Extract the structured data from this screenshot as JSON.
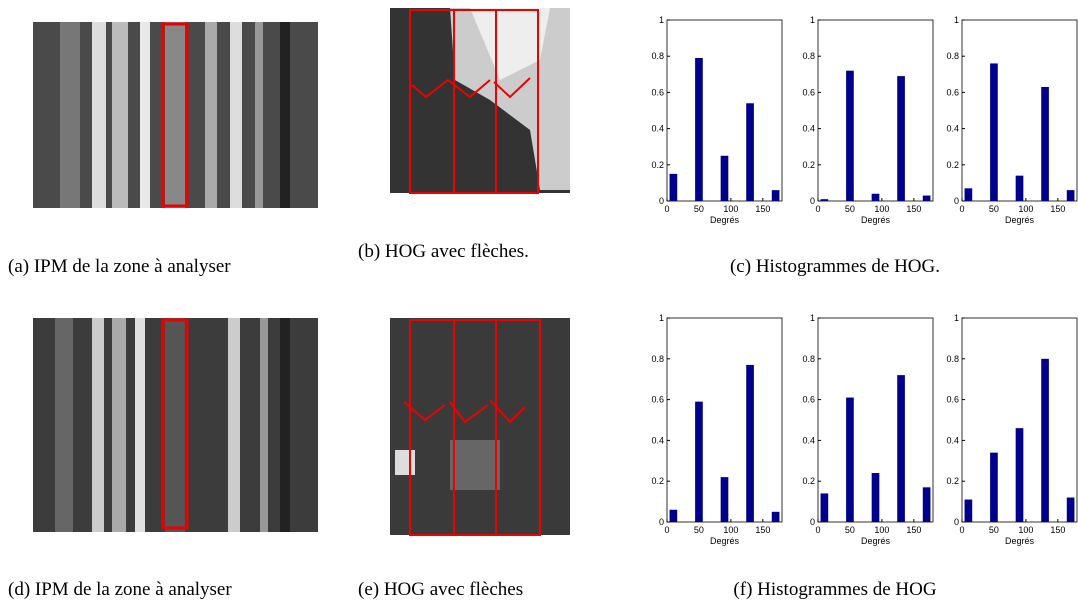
{
  "chart_data": [
    {
      "type": "bar",
      "x": [
        10,
        50,
        90,
        130,
        170
      ],
      "values": [
        0.15,
        0.79,
        0.25,
        0.54,
        0.06
      ],
      "color": "#00008b",
      "xlabel": "Degrés",
      "xlim": [
        0,
        180
      ],
      "xticks": [
        0,
        50,
        100,
        150
      ],
      "ylim": [
        0,
        1
      ],
      "yticks": [
        0,
        0.2,
        0.4,
        0.6,
        0.8,
        1
      ]
    },
    {
      "type": "bar",
      "x": [
        10,
        50,
        90,
        130,
        170
      ],
      "values": [
        0.01,
        0.72,
        0.04,
        0.69,
        0.03
      ],
      "color": "#00008b",
      "xlabel": "Degrés",
      "xlim": [
        0,
        180
      ],
      "xticks": [
        0,
        50,
        100,
        150
      ],
      "ylim": [
        0,
        1
      ],
      "yticks": [
        0,
        0.2,
        0.4,
        0.6,
        0.8,
        1
      ]
    },
    {
      "type": "bar",
      "x": [
        10,
        50,
        90,
        130,
        170
      ],
      "values": [
        0.07,
        0.76,
        0.14,
        0.63,
        0.06
      ],
      "color": "#00008b",
      "xlabel": "Degrés",
      "xlim": [
        0,
        180
      ],
      "xticks": [
        0,
        50,
        100,
        150
      ],
      "ylim": [
        0,
        1
      ],
      "yticks": [
        0,
        0.2,
        0.4,
        0.6,
        0.8,
        1
      ]
    },
    {
      "type": "bar",
      "x": [
        10,
        50,
        90,
        130,
        170
      ],
      "values": [
        0.06,
        0.59,
        0.22,
        0.77,
        0.05
      ],
      "color": "#00008b",
      "xlabel": "Degrés",
      "xlim": [
        0,
        180
      ],
      "xticks": [
        0,
        50,
        100,
        150
      ],
      "ylim": [
        0,
        1
      ],
      "yticks": [
        0,
        0.2,
        0.4,
        0.6,
        0.8,
        1
      ]
    },
    {
      "type": "bar",
      "x": [
        10,
        50,
        90,
        130,
        170
      ],
      "values": [
        0.14,
        0.61,
        0.24,
        0.72,
        0.17
      ],
      "color": "#00008b",
      "xlabel": "Degrés",
      "xlim": [
        0,
        180
      ],
      "xticks": [
        0,
        50,
        100,
        150
      ],
      "ylim": [
        0,
        1
      ],
      "yticks": [
        0,
        0.2,
        0.4,
        0.6,
        0.8,
        1
      ]
    },
    {
      "type": "bar",
      "x": [
        10,
        50,
        90,
        130,
        170
      ],
      "values": [
        0.11,
        0.34,
        0.46,
        0.8,
        0.12
      ],
      "color": "#00008b",
      "xlabel": "Degrés",
      "xlim": [
        0,
        180
      ],
      "xticks": [
        0,
        50,
        100,
        150
      ],
      "ylim": [
        0,
        1
      ],
      "yticks": [
        0,
        0.2,
        0.4,
        0.6,
        0.8,
        1
      ]
    }
  ],
  "captions": [
    "(a) IPM de la zone à analyser",
    "(b) HOG avec flèches.",
    "(c) Histogrammes de HOG.",
    "(d) IPM de la zone à analyser",
    "(e) HOG avec flèches",
    "(f) Histogrammes de HOG"
  ]
}
